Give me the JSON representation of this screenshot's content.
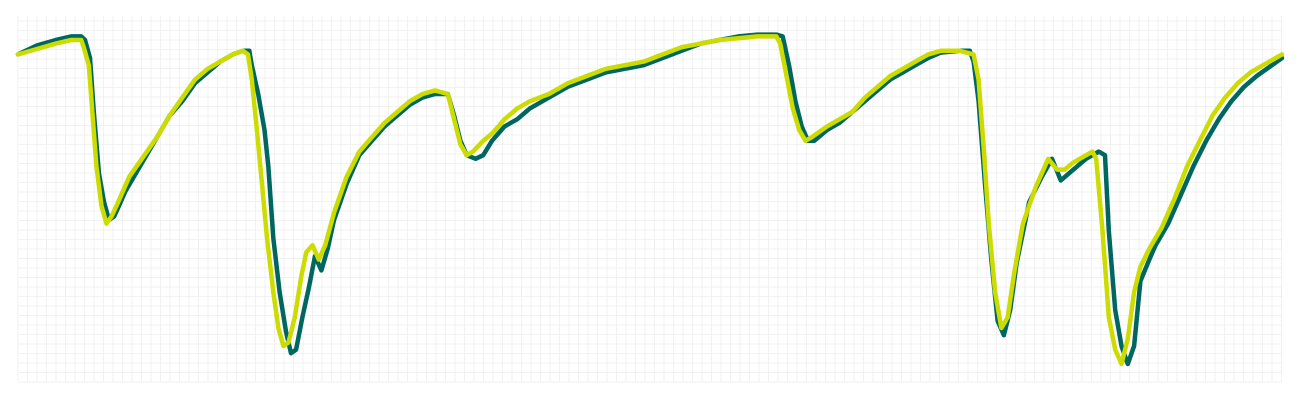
{
  "chart_data": {
    "type": "line",
    "title": "",
    "xlabel": "",
    "ylabel": "",
    "xlim": [
      0,
      100
    ],
    "ylim": [
      0,
      100
    ],
    "grid": true,
    "legend": "none",
    "colors": {
      "background": "#ffffff",
      "grid": "#eeeeee",
      "series_dark": "#006660",
      "series_light": "#cddc00"
    },
    "series": [
      {
        "color": "#006660",
        "points": [
          [
            0.0,
            91
          ],
          [
            1.5,
            93.5
          ],
          [
            3.0,
            95
          ],
          [
            4.2,
            96
          ],
          [
            5.0,
            96
          ],
          [
            5.3,
            95
          ],
          [
            5.7,
            90
          ],
          [
            6.0,
            75
          ],
          [
            6.4,
            58
          ],
          [
            6.8,
            50
          ],
          [
            7.2,
            45
          ],
          [
            7.6,
            46
          ],
          [
            8.0,
            49
          ],
          [
            8.5,
            53
          ],
          [
            9.0,
            56
          ],
          [
            10.0,
            62
          ],
          [
            11.0,
            68
          ],
          [
            12.0,
            74
          ],
          [
            13.0,
            78
          ],
          [
            14.0,
            83
          ],
          [
            15.0,
            86
          ],
          [
            16.0,
            89
          ],
          [
            17.0,
            91
          ],
          [
            17.8,
            92
          ],
          [
            18.3,
            92
          ],
          [
            18.5,
            88
          ],
          [
            19.0,
            80
          ],
          [
            19.5,
            70
          ],
          [
            19.8,
            60
          ],
          [
            20.2,
            40
          ],
          [
            20.7,
            25
          ],
          [
            21.2,
            14
          ],
          [
            21.6,
            8
          ],
          [
            22.0,
            9
          ],
          [
            22.5,
            18
          ],
          [
            23.0,
            26
          ],
          [
            23.5,
            35
          ],
          [
            24.0,
            31
          ],
          [
            24.5,
            37
          ],
          [
            25.0,
            45
          ],
          [
            26.0,
            55
          ],
          [
            27.0,
            63
          ],
          [
            28.0,
            67
          ],
          [
            29.0,
            71
          ],
          [
            30.0,
            74
          ],
          [
            31.0,
            77
          ],
          [
            32.0,
            79
          ],
          [
            33.0,
            80
          ],
          [
            34.0,
            80
          ],
          [
            34.5,
            74
          ],
          [
            35.0,
            67
          ],
          [
            35.5,
            63
          ],
          [
            36.2,
            62
          ],
          [
            36.8,
            63
          ],
          [
            37.5,
            67
          ],
          [
            38.5,
            71
          ],
          [
            39.5,
            73
          ],
          [
            40.5,
            76
          ],
          [
            42.0,
            79
          ],
          [
            43.5,
            82
          ],
          [
            45.0,
            84
          ],
          [
            46.5,
            86
          ],
          [
            48.0,
            87
          ],
          [
            49.5,
            88
          ],
          [
            51.0,
            90
          ],
          [
            52.5,
            92
          ],
          [
            54.0,
            94
          ],
          [
            55.5,
            95
          ],
          [
            57.0,
            96
          ],
          [
            58.5,
            96.5
          ],
          [
            60.0,
            96.5
          ],
          [
            60.5,
            96
          ],
          [
            61.0,
            88
          ],
          [
            61.5,
            78
          ],
          [
            62.0,
            71
          ],
          [
            62.5,
            67
          ],
          [
            63.0,
            67
          ],
          [
            64.0,
            70
          ],
          [
            65.0,
            72
          ],
          [
            66.0,
            75
          ],
          [
            67.0,
            78
          ],
          [
            68.0,
            81
          ],
          [
            69.0,
            84
          ],
          [
            70.0,
            86
          ],
          [
            71.0,
            88
          ],
          [
            72.0,
            90
          ],
          [
            73.0,
            91.5
          ],
          [
            74.5,
            92
          ],
          [
            75.3,
            92
          ],
          [
            75.6,
            89
          ],
          [
            76.0,
            78
          ],
          [
            76.5,
            55
          ],
          [
            77.0,
            34
          ],
          [
            77.5,
            17
          ],
          [
            78.0,
            13
          ],
          [
            78.5,
            20
          ],
          [
            79.0,
            33
          ],
          [
            80.0,
            50
          ],
          [
            81.0,
            57
          ],
          [
            81.8,
            62
          ],
          [
            82.5,
            56
          ],
          [
            83.5,
            59
          ],
          [
            84.5,
            62
          ],
          [
            85.5,
            64
          ],
          [
            86.0,
            63
          ],
          [
            86.3,
            42
          ],
          [
            86.8,
            20
          ],
          [
            87.3,
            10
          ],
          [
            87.8,
            5
          ],
          [
            88.3,
            10
          ],
          [
            88.8,
            28
          ],
          [
            89.5,
            34
          ],
          [
            90.0,
            38
          ],
          [
            91.0,
            44
          ],
          [
            92.0,
            52
          ],
          [
            93.0,
            60
          ],
          [
            94.0,
            67
          ],
          [
            95.0,
            73
          ],
          [
            96.0,
            78
          ],
          [
            97.0,
            82
          ],
          [
            98.0,
            85
          ],
          [
            99.0,
            87.5
          ],
          [
            100.0,
            90
          ]
        ]
      },
      {
        "color": "#cddc00",
        "points": [
          [
            0.0,
            91
          ],
          [
            1.5,
            92.5
          ],
          [
            3.0,
            94
          ],
          [
            4.2,
            95
          ],
          [
            5.0,
            95
          ],
          [
            5.2,
            93
          ],
          [
            5.6,
            88
          ],
          [
            5.9,
            74
          ],
          [
            6.2,
            60
          ],
          [
            6.6,
            49
          ],
          [
            7.0,
            44
          ],
          [
            7.4,
            46
          ],
          [
            7.8,
            49
          ],
          [
            8.3,
            53
          ],
          [
            8.8,
            57
          ],
          [
            10.0,
            63
          ],
          [
            11.0,
            68
          ],
          [
            12.0,
            74
          ],
          [
            13.0,
            79
          ],
          [
            14.0,
            84
          ],
          [
            15.0,
            87
          ],
          [
            16.0,
            89
          ],
          [
            17.0,
            91
          ],
          [
            17.8,
            92
          ],
          [
            18.2,
            91
          ],
          [
            18.5,
            84
          ],
          [
            18.9,
            70
          ],
          [
            19.3,
            55
          ],
          [
            19.7,
            40
          ],
          [
            20.2,
            25
          ],
          [
            20.6,
            15
          ],
          [
            21.0,
            10
          ],
          [
            21.4,
            11
          ],
          [
            21.9,
            18
          ],
          [
            22.4,
            29
          ],
          [
            22.8,
            36
          ],
          [
            23.3,
            38
          ],
          [
            23.8,
            34
          ],
          [
            24.3,
            38
          ],
          [
            25.0,
            47
          ],
          [
            26.0,
            57
          ],
          [
            27.0,
            64
          ],
          [
            28.0,
            68
          ],
          [
            29.0,
            72
          ],
          [
            30.0,
            75
          ],
          [
            31.0,
            78
          ],
          [
            32.0,
            80
          ],
          [
            33.0,
            81
          ],
          [
            34.0,
            80
          ],
          [
            34.5,
            73
          ],
          [
            35.0,
            66
          ],
          [
            35.5,
            63
          ],
          [
            36.0,
            64
          ],
          [
            36.8,
            67
          ],
          [
            37.5,
            69
          ],
          [
            38.5,
            73
          ],
          [
            39.5,
            76
          ],
          [
            40.5,
            78
          ],
          [
            42.0,
            80
          ],
          [
            43.5,
            83
          ],
          [
            45.0,
            85
          ],
          [
            46.5,
            87
          ],
          [
            48.0,
            88
          ],
          [
            49.5,
            89
          ],
          [
            51.0,
            91
          ],
          [
            52.5,
            93
          ],
          [
            54.0,
            94
          ],
          [
            55.5,
            95
          ],
          [
            57.0,
            95.5
          ],
          [
            58.5,
            96
          ],
          [
            60.0,
            96
          ],
          [
            60.3,
            94
          ],
          [
            60.8,
            85
          ],
          [
            61.3,
            76
          ],
          [
            61.8,
            70
          ],
          [
            62.3,
            67
          ],
          [
            62.8,
            68
          ],
          [
            64.0,
            71
          ],
          [
            65.0,
            73
          ],
          [
            66.0,
            75
          ],
          [
            67.0,
            79
          ],
          [
            68.0,
            82
          ],
          [
            69.0,
            85
          ],
          [
            70.0,
            87
          ],
          [
            71.0,
            89
          ],
          [
            72.0,
            91
          ],
          [
            73.0,
            92
          ],
          [
            74.5,
            92
          ],
          [
            75.6,
            91
          ],
          [
            76.0,
            84
          ],
          [
            76.4,
            65
          ],
          [
            76.8,
            44
          ],
          [
            77.3,
            25
          ],
          [
            77.8,
            15
          ],
          [
            78.3,
            18
          ],
          [
            78.8,
            30
          ],
          [
            79.5,
            44
          ],
          [
            80.5,
            54
          ],
          [
            81.5,
            62
          ],
          [
            82.2,
            59
          ],
          [
            82.8,
            59
          ],
          [
            83.5,
            61
          ],
          [
            84.5,
            63
          ],
          [
            85.0,
            64
          ],
          [
            85.3,
            62
          ],
          [
            85.8,
            42
          ],
          [
            86.3,
            18
          ],
          [
            86.8,
            9
          ],
          [
            87.3,
            5
          ],
          [
            87.8,
            12
          ],
          [
            88.3,
            25
          ],
          [
            88.8,
            32
          ],
          [
            89.5,
            37
          ],
          [
            90.5,
            43
          ],
          [
            91.5,
            51
          ],
          [
            92.5,
            60
          ],
          [
            93.5,
            67
          ],
          [
            94.5,
            74
          ],
          [
            95.5,
            79
          ],
          [
            96.5,
            83
          ],
          [
            97.5,
            86
          ],
          [
            98.5,
            88
          ],
          [
            99.5,
            90
          ],
          [
            100.0,
            91
          ]
        ]
      }
    ]
  }
}
